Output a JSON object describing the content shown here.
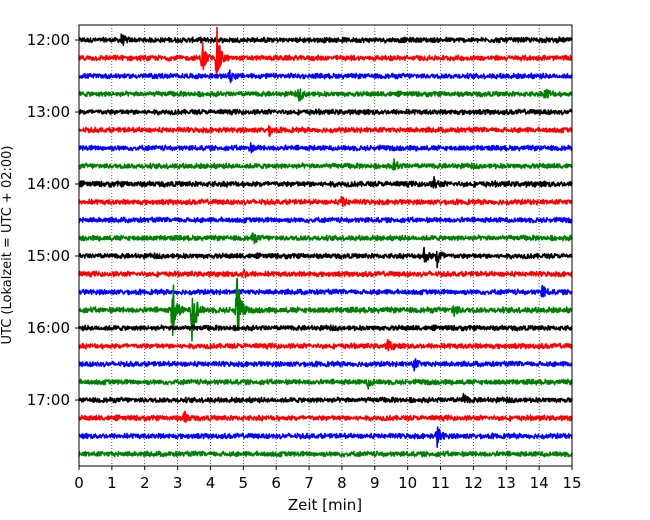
{
  "chart_data": {
    "type": "line",
    "title": "",
    "xlabel": "Zeit  [min]",
    "ylabel": "UTC (Lokalzeit = UTC + 02:00)",
    "xlim": [
      0,
      15
    ],
    "x_ticks": [
      "0",
      "1",
      "2",
      "3",
      "4",
      "5",
      "6",
      "7",
      "8",
      "9",
      "10",
      "11",
      "12",
      "13",
      "14",
      "15"
    ],
    "y_ticks": [
      "12:00",
      "13:00",
      "14:00",
      "15:00",
      "16:00",
      "17:00"
    ],
    "grid": "vertical dotted",
    "legend": "none",
    "colors": [
      "#000000",
      "#ff0000",
      "#0000ff",
      "#008000"
    ],
    "series": [
      {
        "start": "12:00",
        "color": "#000000",
        "amplitude": 0.22,
        "events": [
          {
            "t": 1.3,
            "a": 0.5
          }
        ]
      },
      {
        "start": "12:15",
        "color": "#ff0000",
        "amplitude": 0.22,
        "events": [
          {
            "t": 3.75,
            "a": 1.8
          },
          {
            "t": 4.2,
            "a": 2.8
          }
        ]
      },
      {
        "start": "12:30",
        "color": "#0000ff",
        "amplitude": 0.22,
        "events": [
          {
            "t": 4.6,
            "a": 0.6
          }
        ]
      },
      {
        "start": "12:45",
        "color": "#008000",
        "amplitude": 0.22,
        "events": [
          {
            "t": 6.7,
            "a": 0.6
          },
          {
            "t": 14.2,
            "a": 0.6
          }
        ]
      },
      {
        "start": "13:00",
        "color": "#000000",
        "amplitude": 0.22,
        "events": []
      },
      {
        "start": "13:15",
        "color": "#ff0000",
        "amplitude": 0.22,
        "events": [
          {
            "t": 5.8,
            "a": 0.4
          }
        ]
      },
      {
        "start": "13:30",
        "color": "#0000ff",
        "amplitude": 0.22,
        "events": [
          {
            "t": 5.2,
            "a": 0.4
          }
        ]
      },
      {
        "start": "13:45",
        "color": "#008000",
        "amplitude": 0.22,
        "events": [
          {
            "t": 9.6,
            "a": 0.6
          }
        ]
      },
      {
        "start": "14:00",
        "color": "#000000",
        "amplitude": 0.24,
        "events": [
          {
            "t": 10.8,
            "a": 0.5
          }
        ]
      },
      {
        "start": "14:15",
        "color": "#ff0000",
        "amplitude": 0.22,
        "events": [
          {
            "t": 8.0,
            "a": 0.5
          }
        ]
      },
      {
        "start": "14:30",
        "color": "#0000ff",
        "amplitude": 0.22,
        "events": []
      },
      {
        "start": "14:45",
        "color": "#008000",
        "amplitude": 0.22,
        "events": [
          {
            "t": 5.3,
            "a": 0.5
          }
        ]
      },
      {
        "start": "15:00",
        "color": "#000000",
        "amplitude": 0.22,
        "events": [
          {
            "t": 10.5,
            "a": 0.9
          },
          {
            "t": 10.9,
            "a": 1.2
          }
        ]
      },
      {
        "start": "15:15",
        "color": "#ff0000",
        "amplitude": 0.22,
        "events": [
          {
            "t": 5.0,
            "a": 0.4
          }
        ]
      },
      {
        "start": "15:30",
        "color": "#0000ff",
        "amplitude": 0.22,
        "events": [
          {
            "t": 14.1,
            "a": 0.6
          }
        ]
      },
      {
        "start": "15:45",
        "color": "#008000",
        "amplitude": 0.24,
        "events": [
          {
            "t": 2.85,
            "a": 3.2
          },
          {
            "t": 3.45,
            "a": 4.0
          },
          {
            "t": 4.8,
            "a": 4.2
          },
          {
            "t": 11.4,
            "a": 0.7
          }
        ]
      },
      {
        "start": "16:00",
        "color": "#000000",
        "amplitude": 0.22,
        "events": []
      },
      {
        "start": "16:15",
        "color": "#ff0000",
        "amplitude": 0.22,
        "events": [
          {
            "t": 9.4,
            "a": 0.6
          }
        ]
      },
      {
        "start": "16:30",
        "color": "#0000ff",
        "amplitude": 0.22,
        "events": [
          {
            "t": 10.2,
            "a": 0.5
          }
        ]
      },
      {
        "start": "16:45",
        "color": "#008000",
        "amplitude": 0.22,
        "events": [
          {
            "t": 8.8,
            "a": 0.5
          }
        ]
      },
      {
        "start": "17:00",
        "color": "#000000",
        "amplitude": 0.22,
        "events": [
          {
            "t": 11.7,
            "a": 0.5
          }
        ]
      },
      {
        "start": "17:15",
        "color": "#ff0000",
        "amplitude": 0.22,
        "events": [
          {
            "t": 3.2,
            "a": 0.6
          }
        ]
      },
      {
        "start": "17:30",
        "color": "#0000ff",
        "amplitude": 0.22,
        "events": [
          {
            "t": 10.9,
            "a": 1.0
          }
        ]
      },
      {
        "start": "17:45",
        "color": "#008000",
        "amplitude": 0.22,
        "events": []
      }
    ]
  }
}
